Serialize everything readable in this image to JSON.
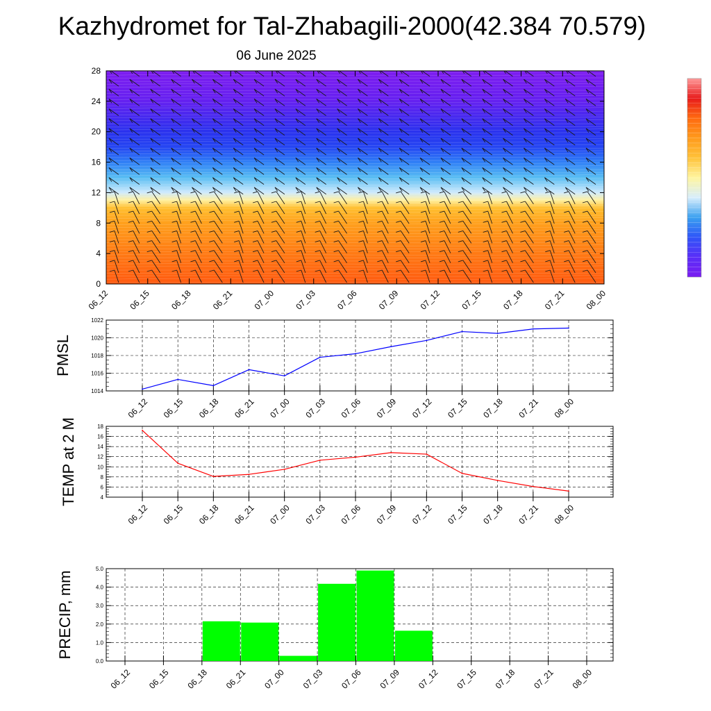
{
  "title": "Kazhydromet for Tal-Zhabagili-2000(42.384 70.579)",
  "subtitle": "06 June 2025",
  "time_labels": [
    "06_12",
    "06_15",
    "06_18",
    "06_21",
    "07_00",
    "07_03",
    "07_06",
    "07_09",
    "07_12",
    "07_15",
    "07_18",
    "07_21",
    "08_00"
  ],
  "colorbar": {
    "stops": [
      "#7a1cf0",
      "#5a2ef8",
      "#2f55f8",
      "#3aa0f0",
      "#d8eefc",
      "#fff5a0",
      "#ffc23a",
      "#ff9a1c",
      "#ff6a10",
      "#e81c1c",
      "#ff9a9a"
    ]
  },
  "chart_data": [
    {
      "type": "heatmap",
      "name": "upper",
      "x": [
        "06_12",
        "06_15",
        "06_18",
        "06_21",
        "07_00",
        "07_03",
        "07_06",
        "07_09",
        "07_12",
        "07_15",
        "07_18",
        "07_21",
        "08_00"
      ],
      "ylim": [
        0,
        28
      ],
      "yticks": [
        0,
        4,
        8,
        12,
        16,
        20,
        24,
        28
      ],
      "colors": {
        "0": "#ff5a10",
        "4": "#ff7a14",
        "8": "#ffa01c",
        "10": "#ffbf30",
        "11": "#fff0a0",
        "12": "#cfeafd",
        "14": "#58bdf3",
        "16": "#2f7ff6",
        "18": "#2545f2",
        "20": "#2a32ee",
        "24": "#6420f0",
        "28": "#7e1cf0"
      }
    },
    {
      "type": "line",
      "ylabel": "PMSL",
      "x": [
        "06_12",
        "06_15",
        "06_18",
        "06_21",
        "07_00",
        "07_03",
        "07_06",
        "07_09",
        "07_12",
        "07_15",
        "07_18",
        "07_21",
        "08_00"
      ],
      "ylim": [
        1014,
        1022
      ],
      "yticks": [
        1014,
        1016,
        1018,
        1020,
        1022
      ],
      "color": "#0000ff",
      "series": [
        {
          "values": [
            1014.2,
            1015.3,
            1014.6,
            1016.4,
            1015.7,
            1017.8,
            1018.2,
            1019.0,
            1019.7,
            1020.7,
            1020.5,
            1021.0,
            1021.1
          ]
        }
      ]
    },
    {
      "type": "line",
      "ylabel": "TEMP at 2 M",
      "x": [
        "06_12",
        "06_15",
        "06_18",
        "06_21",
        "07_00",
        "07_03",
        "07_06",
        "07_09",
        "07_12",
        "07_15",
        "07_18",
        "07_21",
        "08_00"
      ],
      "ylim": [
        4,
        18
      ],
      "yticks": [
        4,
        6,
        8,
        10,
        12,
        14,
        16,
        18
      ],
      "color": "#ff0000",
      "series": [
        {
          "values": [
            17.2,
            10.7,
            8.1,
            8.5,
            9.5,
            11.3,
            11.9,
            12.8,
            12.5,
            8.7,
            7.3,
            6.1,
            5.2
          ]
        }
      ]
    },
    {
      "type": "bar",
      "ylabel": "PRECIP, mm",
      "x": [
        "06_12",
        "06_15",
        "06_18",
        "06_21",
        "07_00",
        "07_03",
        "07_06",
        "07_09",
        "07_12",
        "07_15",
        "07_18",
        "07_21",
        "08_00"
      ],
      "ylim": [
        0,
        5
      ],
      "yticks": [
        "0.0",
        "1.0",
        "2.0",
        "3.0",
        "4.0",
        "5.0"
      ],
      "color": "#00ff00",
      "values": [
        0,
        0,
        0,
        2.15,
        2.08,
        0.28,
        4.18,
        4.9,
        1.64,
        0,
        0,
        0,
        0
      ]
    }
  ]
}
